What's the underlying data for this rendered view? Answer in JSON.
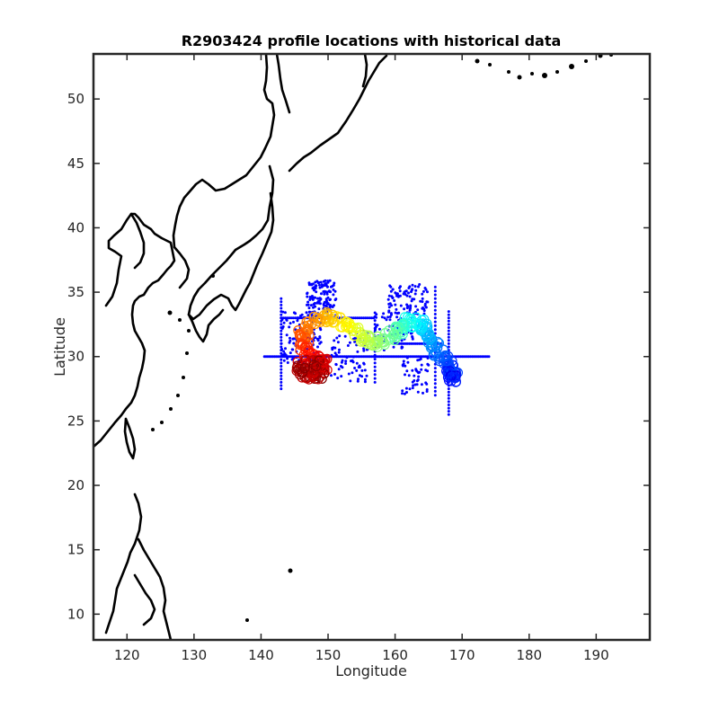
{
  "chart_data": {
    "type": "scatter",
    "title": "R2903424 profile locations with historical data",
    "xlabel": "Longitude",
    "ylabel": "Latitude",
    "xlim": [
      115,
      198
    ],
    "ylim": [
      8,
      53.5
    ],
    "xticks": [
      120,
      130,
      140,
      150,
      160,
      170,
      180,
      190
    ],
    "yticks": [
      10,
      15,
      20,
      25,
      30,
      35,
      40,
      45,
      50
    ],
    "grid": false,
    "legend": "none",
    "colors": {
      "historical": "#0000ff",
      "coastline": "#000000",
      "colormap": [
        "#00008f",
        "#0000ff",
        "#0080ff",
        "#00ffff",
        "#80ff80",
        "#ffff00",
        "#ff8000",
        "#ff0000",
        "#800000"
      ]
    },
    "historical_lines": {
      "lat30_lon_range": [
        140.5,
        174.0
      ],
      "lon143_lat_range": [
        27.5,
        34.5
      ],
      "lon157_lat_range": [
        28.0,
        33.5
      ],
      "lat33_lon_range": [
        143.0,
        157.0
      ],
      "lat31_lon_range": [
        160.0,
        167.0
      ],
      "lon166_lat_range": [
        27.0,
        35.5
      ],
      "lon168_lat_range": [
        25.5,
        33.5
      ]
    },
    "historical_clusters": [
      {
        "center": [
          149,
          34.5
        ],
        "spread": [
          2.2,
          1.4
        ],
        "count": 140
      },
      {
        "center": [
          146,
          31.5
        ],
        "spread": [
          3.0,
          2.0
        ],
        "count": 120
      },
      {
        "center": [
          153,
          30.0
        ],
        "spread": [
          3.0,
          2.0
        ],
        "count": 80
      },
      {
        "center": [
          162,
          34.5
        ],
        "spread": [
          3.0,
          1.2
        ],
        "count": 90
      },
      {
        "center": [
          163,
          28.5
        ],
        "spread": [
          2.0,
          1.5
        ],
        "count": 50
      },
      {
        "center": [
          160,
          32.0
        ],
        "spread": [
          3.0,
          1.5
        ],
        "count": 60
      }
    ],
    "float_track": [
      {
        "lon": 168.5,
        "lat": 28.5
      },
      {
        "lon": 168.0,
        "lat": 29.3
      },
      {
        "lon": 167.0,
        "lat": 30.0
      },
      {
        "lon": 165.8,
        "lat": 30.9
      },
      {
        "lon": 164.8,
        "lat": 31.8
      },
      {
        "lon": 163.8,
        "lat": 32.5
      },
      {
        "lon": 162.5,
        "lat": 32.8
      },
      {
        "lon": 161.0,
        "lat": 32.3
      },
      {
        "lon": 159.5,
        "lat": 31.6
      },
      {
        "lon": 157.5,
        "lat": 31.1
      },
      {
        "lon": 155.5,
        "lat": 31.4
      },
      {
        "lon": 153.5,
        "lat": 32.1
      },
      {
        "lon": 151.5,
        "lat": 32.8
      },
      {
        "lon": 149.5,
        "lat": 33.1
      },
      {
        "lon": 147.5,
        "lat": 32.6
      },
      {
        "lon": 146.0,
        "lat": 31.8
      },
      {
        "lon": 146.5,
        "lat": 30.7
      },
      {
        "lon": 148.0,
        "lat": 30.0
      },
      {
        "lon": 149.5,
        "lat": 29.4
      },
      {
        "lon": 148.0,
        "lat": 29.0
      },
      {
        "lon": 147.5,
        "lat": 28.6
      }
    ]
  }
}
